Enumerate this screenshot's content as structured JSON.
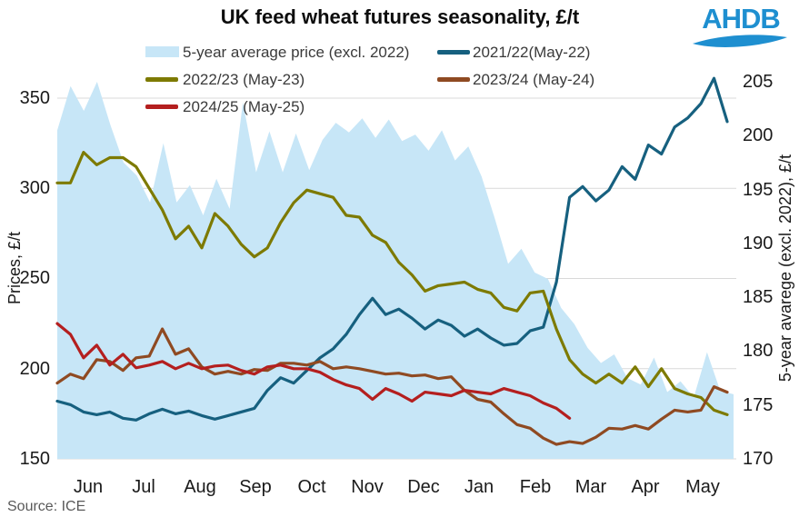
{
  "page": {
    "source": "Source: ICE"
  },
  "logo": {
    "text": "AHDB",
    "color": "#1e8fd0"
  },
  "chart_data": {
    "type": "line",
    "title": "UK feed wheat futures seasonality, £/t",
    "legend_position": "top",
    "grid": "horizontal, left-axis ticks, behind area",
    "x_axis": {
      "categories": [
        "Jun",
        "Jul",
        "Aug",
        "Sep",
        "Oct",
        "Nov",
        "Dec",
        "Jan",
        "Feb",
        "Mar",
        "Apr",
        "May"
      ]
    },
    "left_axis": {
      "label": "Prices, £/t",
      "ticks": [
        150,
        200,
        250,
        300,
        350
      ],
      "range": [
        150,
        362
      ]
    },
    "right_axis": {
      "label": "5-year avarege (excl. 2022), £/t",
      "ticks": [
        170,
        175,
        180,
        185,
        190,
        195,
        200,
        205
      ],
      "range": [
        170,
        205.4
      ]
    },
    "series": [
      {
        "name": "5-year average price (excl. 2022)",
        "style": "area",
        "axis": "right",
        "color": "#c7e6f7",
        "values": [
          200.5,
          204.6,
          202.3,
          205,
          201,
          197.5,
          196.3,
          193.8,
          199.3,
          193.8,
          195.4,
          192.6,
          196,
          193.2,
          203.1,
          196.6,
          200.4,
          196.6,
          200.2,
          196.8,
          199.6,
          201.2,
          200.3,
          201.6,
          199.8,
          201.5,
          199.5,
          200.1,
          198.6,
          200.5,
          197.7,
          199,
          196.2,
          192.3,
          188.1,
          189.5,
          187.3,
          186.7,
          184,
          182.5,
          180.3,
          178.9,
          179.7,
          177.5,
          176.9,
          179.4,
          176.2,
          177.2,
          175.7,
          179.9,
          176.3,
          176
        ]
      },
      {
        "name": "2021/22(May-22)",
        "style": "line",
        "axis": "left",
        "color": "#16607f",
        "values": [
          182,
          180,
          176,
          174.5,
          176,
          172.5,
          171.5,
          175,
          177.5,
          175,
          176.5,
          174,
          172,
          174,
          176,
          178,
          188,
          195,
          192,
          199,
          206,
          211,
          219,
          230,
          239,
          230,
          233,
          228,
          222,
          227,
          224,
          218,
          222,
          217,
          213,
          214,
          221,
          223,
          248,
          295,
          301,
          293,
          299,
          312,
          305,
          324,
          319,
          334,
          339,
          347,
          361,
          337
        ]
      },
      {
        "name": "2022/23 (May-23)",
        "style": "line",
        "axis": "left",
        "color": "#7d7a00",
        "values": [
          303,
          303,
          320,
          313,
          317,
          317,
          312,
          300,
          288,
          272,
          279,
          267,
          286,
          279,
          269,
          262,
          267,
          281,
          292,
          299,
          297,
          295,
          285,
          284,
          274,
          270,
          259,
          252,
          243,
          246,
          247,
          248,
          244,
          242,
          234,
          232,
          242,
          243,
          222,
          205,
          197,
          192,
          197,
          192,
          201,
          190,
          200,
          189,
          186,
          184,
          177,
          174.5
        ]
      },
      {
        "name": "2023/24 (May-24)",
        "style": "line",
        "axis": "left",
        "color": "#8f4a22",
        "values": [
          192,
          197,
          194.5,
          205,
          204,
          199,
          206,
          207,
          222,
          208,
          211,
          201,
          197,
          198.5,
          197,
          199.5,
          199,
          203,
          203,
          202,
          204,
          200,
          201,
          200,
          198.5,
          197,
          197.5,
          196,
          196.5,
          194.5,
          195.5,
          188,
          183,
          181.5,
          175,
          169,
          167,
          161.5,
          158,
          159.5,
          158.5,
          162,
          167,
          166.5,
          168.5,
          166.5,
          172,
          177,
          176,
          177,
          190,
          187
        ]
      },
      {
        "name": "2024/25 (May-25)",
        "style": "line",
        "axis": "left",
        "color": "#b41f1f",
        "values": [
          225,
          219,
          206,
          213,
          202,
          208,
          200.5,
          202,
          204,
          200,
          203,
          200,
          201.5,
          202,
          199,
          197,
          201,
          202,
          200,
          200,
          198,
          194,
          191,
          189,
          183,
          189,
          186,
          182,
          187,
          186,
          185,
          188,
          187,
          186,
          189,
          187,
          185,
          181,
          178,
          172.5
        ]
      }
    ]
  }
}
